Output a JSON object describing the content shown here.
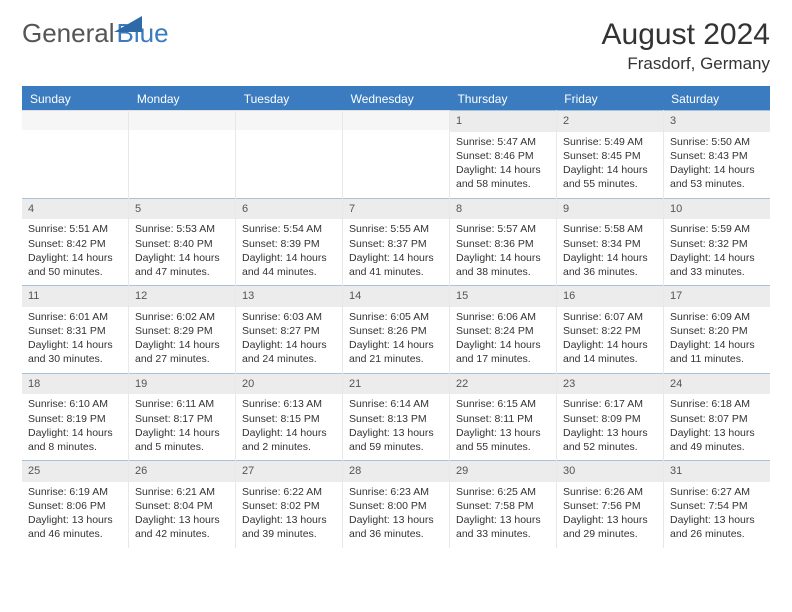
{
  "logo": {
    "general": "General",
    "blue": "Blue"
  },
  "title": "August 2024",
  "location": "Frasdorf, Germany",
  "colors": {
    "header_bg": "#3b7bbf",
    "header_text": "#ffffff",
    "daynum_bg": "#ececec",
    "cell_border": "#e8e8e8",
    "top_border": "#3b7bbf",
    "daynum_top_border": "#a8c4dc"
  },
  "day_headers": [
    "Sunday",
    "Monday",
    "Tuesday",
    "Wednesday",
    "Thursday",
    "Friday",
    "Saturday"
  ],
  "weeks": [
    [
      {
        "n": "",
        "empty": true
      },
      {
        "n": "",
        "empty": true
      },
      {
        "n": "",
        "empty": true
      },
      {
        "n": "",
        "empty": true
      },
      {
        "n": "1",
        "sunrise": "Sunrise: 5:47 AM",
        "sunset": "Sunset: 8:46 PM",
        "day1": "Daylight: 14 hours",
        "day2": "and 58 minutes."
      },
      {
        "n": "2",
        "sunrise": "Sunrise: 5:49 AM",
        "sunset": "Sunset: 8:45 PM",
        "day1": "Daylight: 14 hours",
        "day2": "and 55 minutes."
      },
      {
        "n": "3",
        "sunrise": "Sunrise: 5:50 AM",
        "sunset": "Sunset: 8:43 PM",
        "day1": "Daylight: 14 hours",
        "day2": "and 53 minutes."
      }
    ],
    [
      {
        "n": "4",
        "sunrise": "Sunrise: 5:51 AM",
        "sunset": "Sunset: 8:42 PM",
        "day1": "Daylight: 14 hours",
        "day2": "and 50 minutes."
      },
      {
        "n": "5",
        "sunrise": "Sunrise: 5:53 AM",
        "sunset": "Sunset: 8:40 PM",
        "day1": "Daylight: 14 hours",
        "day2": "and 47 minutes."
      },
      {
        "n": "6",
        "sunrise": "Sunrise: 5:54 AM",
        "sunset": "Sunset: 8:39 PM",
        "day1": "Daylight: 14 hours",
        "day2": "and 44 minutes."
      },
      {
        "n": "7",
        "sunrise": "Sunrise: 5:55 AM",
        "sunset": "Sunset: 8:37 PM",
        "day1": "Daylight: 14 hours",
        "day2": "and 41 minutes."
      },
      {
        "n": "8",
        "sunrise": "Sunrise: 5:57 AM",
        "sunset": "Sunset: 8:36 PM",
        "day1": "Daylight: 14 hours",
        "day2": "and 38 minutes."
      },
      {
        "n": "9",
        "sunrise": "Sunrise: 5:58 AM",
        "sunset": "Sunset: 8:34 PM",
        "day1": "Daylight: 14 hours",
        "day2": "and 36 minutes."
      },
      {
        "n": "10",
        "sunrise": "Sunrise: 5:59 AM",
        "sunset": "Sunset: 8:32 PM",
        "day1": "Daylight: 14 hours",
        "day2": "and 33 minutes."
      }
    ],
    [
      {
        "n": "11",
        "sunrise": "Sunrise: 6:01 AM",
        "sunset": "Sunset: 8:31 PM",
        "day1": "Daylight: 14 hours",
        "day2": "and 30 minutes."
      },
      {
        "n": "12",
        "sunrise": "Sunrise: 6:02 AM",
        "sunset": "Sunset: 8:29 PM",
        "day1": "Daylight: 14 hours",
        "day2": "and 27 minutes."
      },
      {
        "n": "13",
        "sunrise": "Sunrise: 6:03 AM",
        "sunset": "Sunset: 8:27 PM",
        "day1": "Daylight: 14 hours",
        "day2": "and 24 minutes."
      },
      {
        "n": "14",
        "sunrise": "Sunrise: 6:05 AM",
        "sunset": "Sunset: 8:26 PM",
        "day1": "Daylight: 14 hours",
        "day2": "and 21 minutes."
      },
      {
        "n": "15",
        "sunrise": "Sunrise: 6:06 AM",
        "sunset": "Sunset: 8:24 PM",
        "day1": "Daylight: 14 hours",
        "day2": "and 17 minutes."
      },
      {
        "n": "16",
        "sunrise": "Sunrise: 6:07 AM",
        "sunset": "Sunset: 8:22 PM",
        "day1": "Daylight: 14 hours",
        "day2": "and 14 minutes."
      },
      {
        "n": "17",
        "sunrise": "Sunrise: 6:09 AM",
        "sunset": "Sunset: 8:20 PM",
        "day1": "Daylight: 14 hours",
        "day2": "and 11 minutes."
      }
    ],
    [
      {
        "n": "18",
        "sunrise": "Sunrise: 6:10 AM",
        "sunset": "Sunset: 8:19 PM",
        "day1": "Daylight: 14 hours",
        "day2": "and 8 minutes."
      },
      {
        "n": "19",
        "sunrise": "Sunrise: 6:11 AM",
        "sunset": "Sunset: 8:17 PM",
        "day1": "Daylight: 14 hours",
        "day2": "and 5 minutes."
      },
      {
        "n": "20",
        "sunrise": "Sunrise: 6:13 AM",
        "sunset": "Sunset: 8:15 PM",
        "day1": "Daylight: 14 hours",
        "day2": "and 2 minutes."
      },
      {
        "n": "21",
        "sunrise": "Sunrise: 6:14 AM",
        "sunset": "Sunset: 8:13 PM",
        "day1": "Daylight: 13 hours",
        "day2": "and 59 minutes."
      },
      {
        "n": "22",
        "sunrise": "Sunrise: 6:15 AM",
        "sunset": "Sunset: 8:11 PM",
        "day1": "Daylight: 13 hours",
        "day2": "and 55 minutes."
      },
      {
        "n": "23",
        "sunrise": "Sunrise: 6:17 AM",
        "sunset": "Sunset: 8:09 PM",
        "day1": "Daylight: 13 hours",
        "day2": "and 52 minutes."
      },
      {
        "n": "24",
        "sunrise": "Sunrise: 6:18 AM",
        "sunset": "Sunset: 8:07 PM",
        "day1": "Daylight: 13 hours",
        "day2": "and 49 minutes."
      }
    ],
    [
      {
        "n": "25",
        "sunrise": "Sunrise: 6:19 AM",
        "sunset": "Sunset: 8:06 PM",
        "day1": "Daylight: 13 hours",
        "day2": "and 46 minutes."
      },
      {
        "n": "26",
        "sunrise": "Sunrise: 6:21 AM",
        "sunset": "Sunset: 8:04 PM",
        "day1": "Daylight: 13 hours",
        "day2": "and 42 minutes."
      },
      {
        "n": "27",
        "sunrise": "Sunrise: 6:22 AM",
        "sunset": "Sunset: 8:02 PM",
        "day1": "Daylight: 13 hours",
        "day2": "and 39 minutes."
      },
      {
        "n": "28",
        "sunrise": "Sunrise: 6:23 AM",
        "sunset": "Sunset: 8:00 PM",
        "day1": "Daylight: 13 hours",
        "day2": "and 36 minutes."
      },
      {
        "n": "29",
        "sunrise": "Sunrise: 6:25 AM",
        "sunset": "Sunset: 7:58 PM",
        "day1": "Daylight: 13 hours",
        "day2": "and 33 minutes."
      },
      {
        "n": "30",
        "sunrise": "Sunrise: 6:26 AM",
        "sunset": "Sunset: 7:56 PM",
        "day1": "Daylight: 13 hours",
        "day2": "and 29 minutes."
      },
      {
        "n": "31",
        "sunrise": "Sunrise: 6:27 AM",
        "sunset": "Sunset: 7:54 PM",
        "day1": "Daylight: 13 hours",
        "day2": "and 26 minutes."
      }
    ]
  ]
}
